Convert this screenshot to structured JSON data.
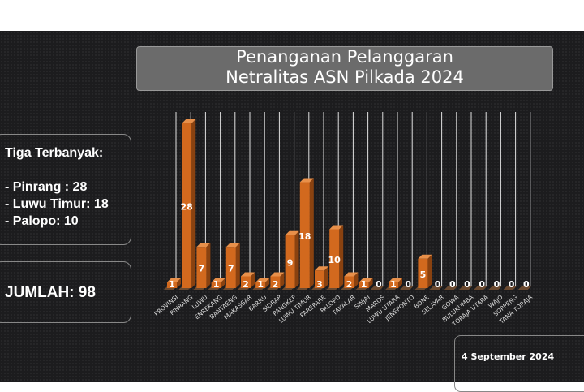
{
  "title_lines": [
    "Penanganan Pelanggaran",
    "Netralitas ASN Pilkada 2024"
  ],
  "summary": {
    "heading": "Tiga Terbanyak:",
    "items": [
      "- Pinrang : 28",
      "- Luwu Timur: 18",
      "- Palopo: 10"
    ],
    "total": "JUMLAH: 98"
  },
  "date": "4 September 2024",
  "colors": {
    "bar": "#d2691e",
    "bar_top": "#e8904a",
    "bar_side": "#8a4210",
    "grid": "#e0e0e0",
    "background": "#1c1c1e"
  },
  "chart_data": {
    "type": "bar",
    "title": "Penanganan Pelanggaran Netralitas ASN Pilkada 2024",
    "categories": [
      "PROVINSI",
      "PINRANG",
      "LUWU",
      "ENREKANG",
      "BANTAENG",
      "MAKASSAR",
      "BARRU",
      "SIDRAP",
      "PANGKEP",
      "LUWU TIMUR",
      "PAREPARE",
      "PALOPO",
      "TAKALAR",
      "SINJAI",
      "MAROS",
      "LUWU UTARA",
      "JENEPONTO",
      "BONE",
      "SELAYAR",
      "GOWA",
      "BULUKUMBA",
      "TORAJA UTARA",
      "WAJO",
      "SOPPENG",
      "TANA TORAJA"
    ],
    "values": [
      1,
      28,
      7,
      1,
      7,
      2,
      1,
      2,
      9,
      18,
      3,
      10,
      2,
      1,
      0,
      1,
      0,
      5,
      0,
      0,
      0,
      0,
      0,
      0,
      0
    ],
    "ylim": [
      0,
      28
    ],
    "grid": true,
    "xlabel": "",
    "ylabel": ""
  }
}
